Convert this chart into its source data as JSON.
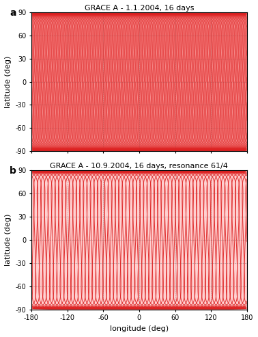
{
  "title_a": "GRACE A - 1.1.2004, 16 days",
  "title_b": "GRACE A - 10.9.2004, 16 days, resonance 61/4",
  "label_a": "a",
  "label_b": "b",
  "xlabel": "longitude (deg)",
  "ylabel": "latitude (deg)",
  "xlim": [
    -180,
    180
  ],
  "ylim": [
    -90,
    90
  ],
  "xticks": [
    -180,
    -120,
    -60,
    0,
    60,
    120,
    180
  ],
  "yticks": [
    -90,
    -60,
    -30,
    0,
    30,
    60,
    90
  ],
  "coast_color": "#007700",
  "bg_color": "#FFFFFF",
  "inclination_deg": 89.0,
  "n_orbits_a": 233,
  "n_orbits_b": 61,
  "track_lw_a": 0.35,
  "track_lw_b": 0.7,
  "coast_lw": 0.7,
  "grid_color": "#777777",
  "grid_lw": 0.4,
  "title_fontsize": 8,
  "label_fontsize": 10,
  "tick_fontsize": 7,
  "axis_label_fontsize": 8,
  "fill_color_a": "#FFAAAA",
  "fill_color_b": "#FFD0D0",
  "track_color_a": "#DD2222",
  "track_color_b": "#DD2222"
}
